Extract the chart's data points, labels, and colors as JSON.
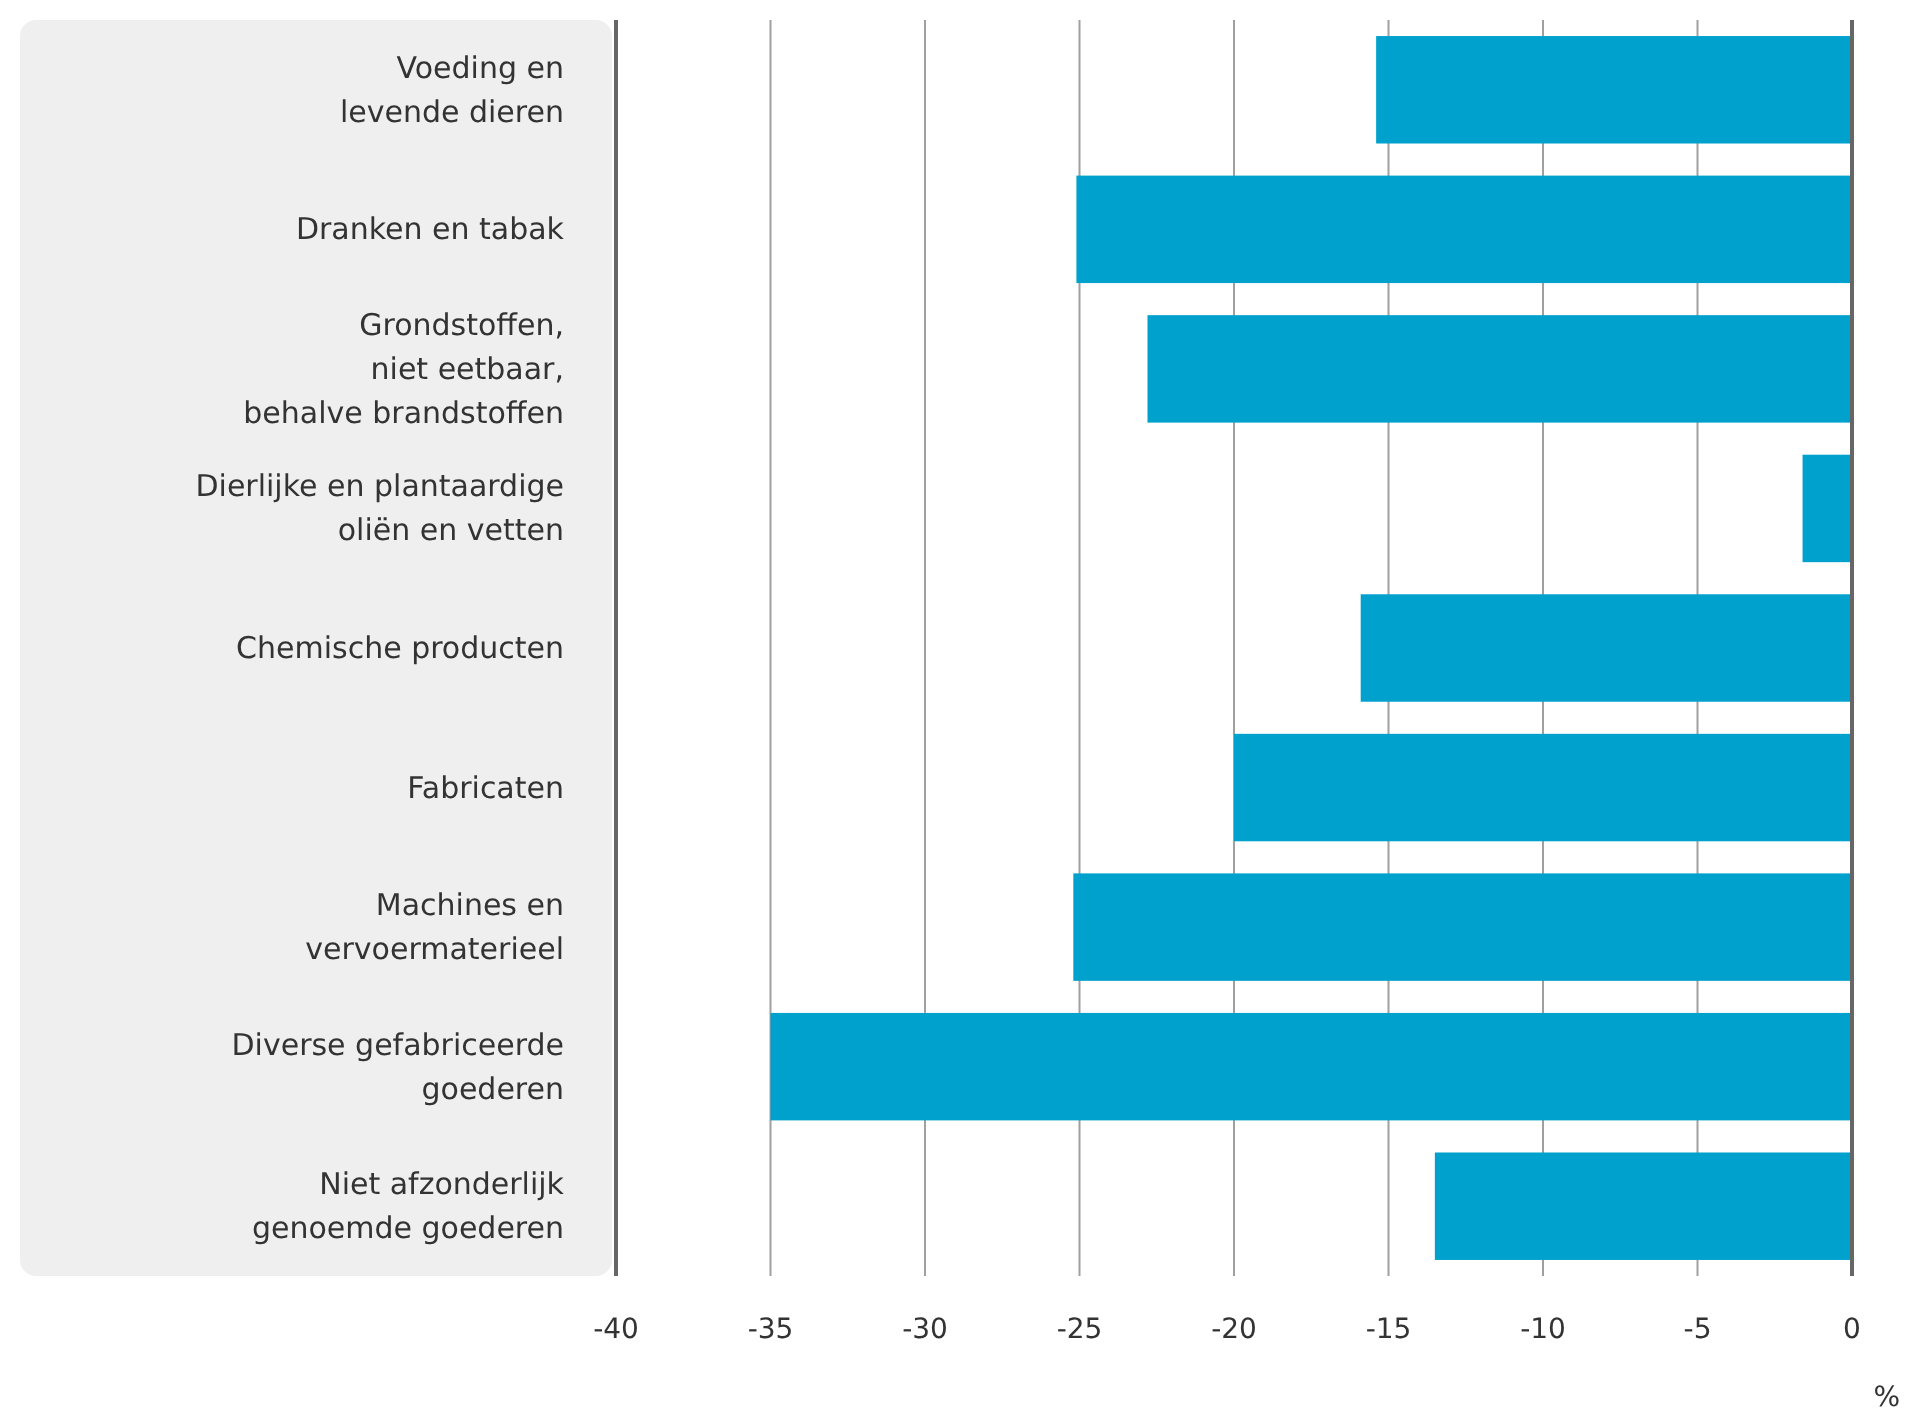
{
  "chart_data": {
    "type": "bar",
    "orientation": "horizontal",
    "xlabel": "%",
    "categories": [
      "Voeding en\nlevende dieren",
      "Dranken en tabak",
      "Grondstoffen,\nniet eetbaar,\nbehalve brandstoffen",
      "Dierlijke en plantaardige\noliën en vetten",
      "Chemische producten",
      "Fabricaten",
      "Machines en\nvervoermaterieel",
      "Diverse gefabriceerde\ngoederen",
      "Niet afzonderlijk\ngenoemde goederen"
    ],
    "values": [
      -15.4,
      -25.1,
      -22.8,
      -1.6,
      -15.9,
      -20.0,
      -25.2,
      -35.0,
      -13.5
    ],
    "color": "#00a1cd",
    "xlim": [
      -40,
      0
    ],
    "xticks": [
      -40,
      -35,
      -30,
      -25,
      -20,
      -15,
      -10,
      -5,
      0
    ],
    "grid": "x"
  }
}
